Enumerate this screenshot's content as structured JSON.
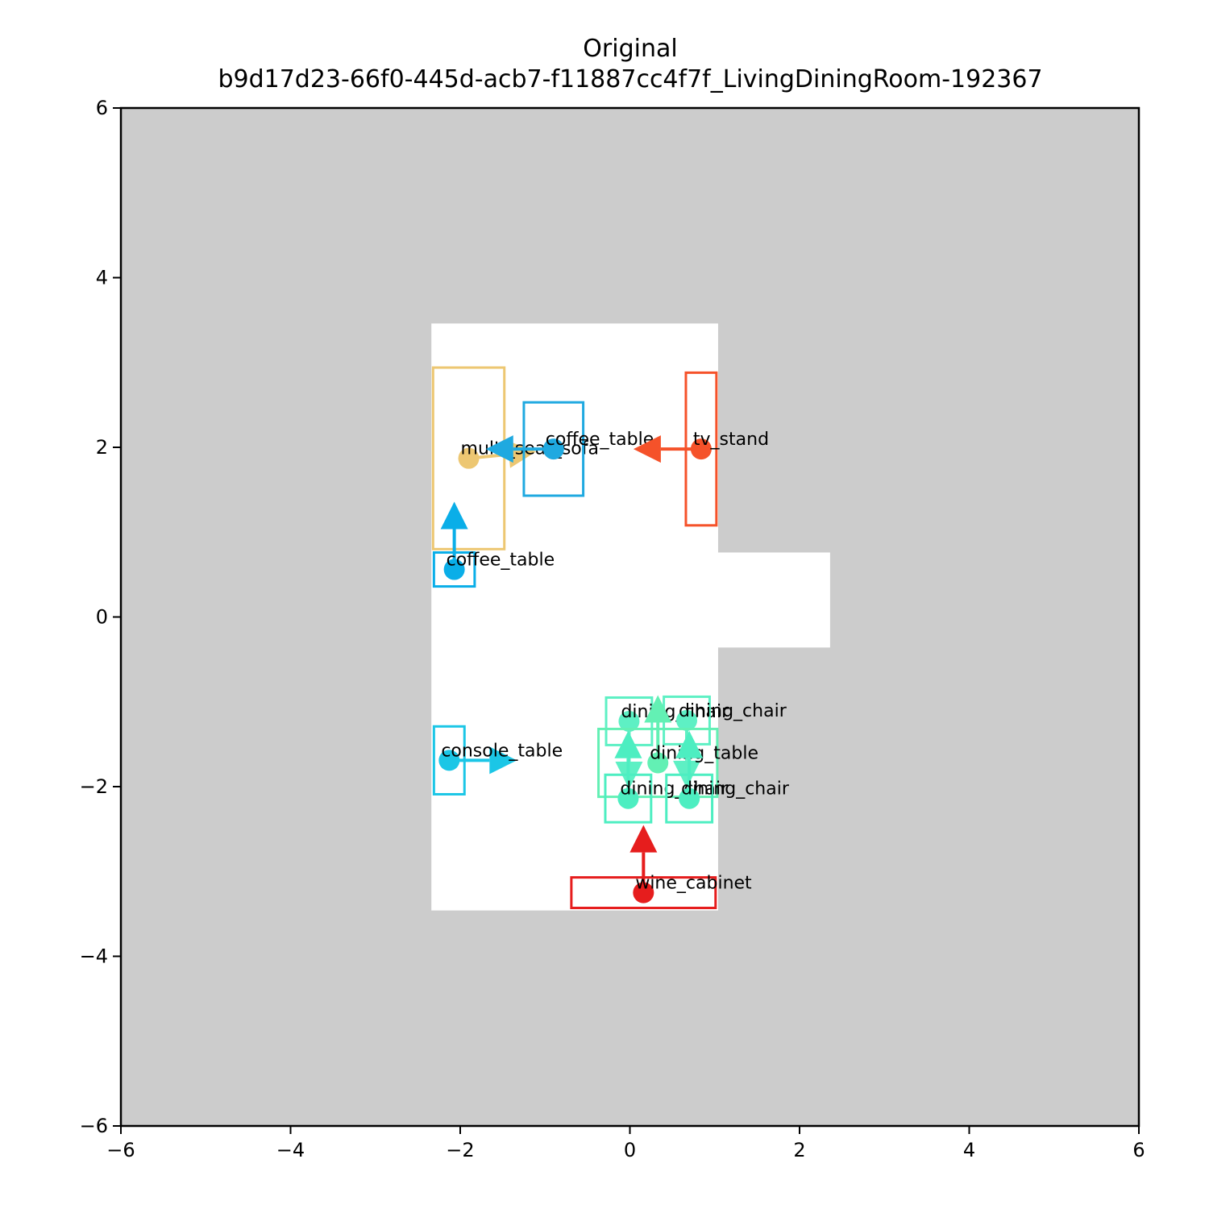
{
  "title": {
    "line1": "Original",
    "line2": "b9d17d23-66f0-445d-acb7-f11887cc4f7f_LivingDiningRoom-192367"
  },
  "colors": {
    "background": "#cccccc",
    "floor": "#ffffff",
    "axis": "#000000"
  },
  "axes": {
    "xlim": [
      -6,
      6
    ],
    "ylim": [
      -6,
      6
    ],
    "xticks": [
      -6,
      -4,
      -2,
      0,
      2,
      4,
      6
    ],
    "yticks": [
      -6,
      -4,
      -2,
      0,
      2,
      4,
      6
    ],
    "xtick_labels": [
      "−6",
      "−4",
      "−2",
      "0",
      "2",
      "4",
      "6"
    ],
    "ytick_labels": [
      "−6",
      "−4",
      "−2",
      "0",
      "2",
      "4",
      "6"
    ]
  },
  "floor_polygon": [
    [
      -2.34,
      3.46
    ],
    [
      1.04,
      3.46
    ],
    [
      1.04,
      0.76
    ],
    [
      2.36,
      0.76
    ],
    [
      2.36,
      -0.36
    ],
    [
      1.04,
      -0.36
    ],
    [
      1.04,
      -3.46
    ],
    [
      -2.34,
      -3.46
    ]
  ],
  "objects": [
    {
      "label": "multi_seat_sofa",
      "color": "#edc772",
      "center": [
        -1.9,
        1.87
      ],
      "size": [
        0.84,
        2.14
      ],
      "dir": [
        1,
        0.1
      ]
    },
    {
      "label": "coffee_table",
      "color": "#1fa9e0",
      "center": [
        -0.9,
        1.98
      ],
      "size": [
        0.7,
        1.1
      ],
      "dir": [
        -1,
        0
      ]
    },
    {
      "label": "tv_stand",
      "color": "#f5522a",
      "center": [
        0.84,
        1.98
      ],
      "size": [
        0.36,
        1.8
      ],
      "dir": [
        -1,
        0
      ]
    },
    {
      "label": "coffee_table",
      "color": "#0aaee8",
      "center": [
        -2.07,
        0.56
      ],
      "size": [
        0.48,
        0.4
      ],
      "dir": [
        0,
        1
      ]
    },
    {
      "label": "console_table",
      "color": "#1bc6e6",
      "center": [
        -2.13,
        -1.69
      ],
      "size": [
        0.36,
        0.8
      ],
      "dir": [
        1,
        0
      ]
    },
    {
      "label": "dining_chair",
      "color": "#5ef0c4",
      "center": [
        -0.01,
        -1.23
      ],
      "size": [
        0.54,
        0.56
      ],
      "dir": [
        0,
        -1
      ]
    },
    {
      "label": "dining_chair",
      "color": "#5ef0c4",
      "center": [
        0.67,
        -1.22
      ],
      "size": [
        0.54,
        0.56
      ],
      "dir": [
        0,
        -1
      ]
    },
    {
      "label": "dining_table",
      "color": "#63f0b4",
      "center": [
        0.33,
        -1.72
      ],
      "size": [
        1.4,
        0.8
      ],
      "dir": [
        0,
        1
      ]
    },
    {
      "label": "dining_chair",
      "color": "#4deec1",
      "center": [
        -0.02,
        -2.14
      ],
      "size": [
        0.54,
        0.56
      ],
      "dir": [
        0,
        1
      ]
    },
    {
      "label": "dining_chair",
      "color": "#4deec1",
      "center": [
        0.7,
        -2.14
      ],
      "size": [
        0.54,
        0.56
      ],
      "dir": [
        0,
        1
      ]
    },
    {
      "label": "wine_cabinet",
      "color": "#e61d1d",
      "center": [
        0.16,
        -3.25
      ],
      "size": [
        1.7,
        0.36
      ],
      "dir": [
        0,
        1
      ]
    }
  ]
}
